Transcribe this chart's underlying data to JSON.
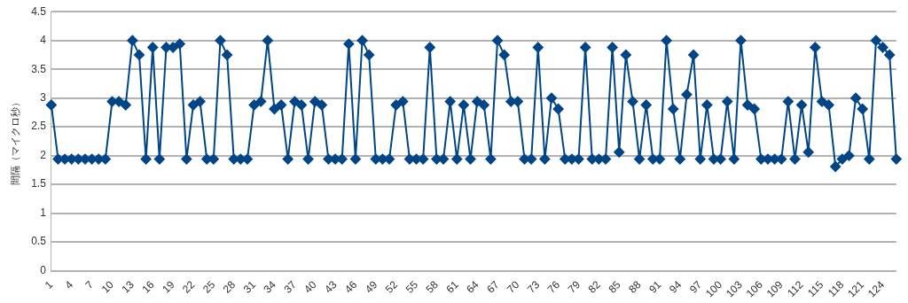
{
  "chart_data": {
    "type": "line",
    "ylabel": "間隔（マイクロ秒）",
    "categories": [
      "1",
      null,
      null,
      "4",
      null,
      null,
      "7",
      null,
      null,
      "10",
      null,
      null,
      "13",
      null,
      null,
      "16",
      null,
      null,
      "19",
      null,
      null,
      "22",
      null,
      null,
      "25",
      null,
      null,
      "28",
      null,
      null,
      "31",
      null,
      null,
      "34",
      null,
      null,
      "37",
      null,
      null,
      "40",
      null,
      null,
      "43",
      null,
      null,
      "46",
      null,
      null,
      "49",
      null,
      null,
      "52",
      null,
      null,
      "55",
      null,
      null,
      "58",
      null,
      null,
      "61",
      null,
      null,
      "64",
      null,
      null,
      "67",
      null,
      null,
      "70",
      null,
      null,
      "73",
      null,
      null,
      "76",
      null,
      null,
      "79",
      null,
      null,
      "82",
      null,
      null,
      "85",
      null,
      null,
      "88",
      null,
      null,
      "91",
      null,
      null,
      "94",
      null,
      null,
      "97",
      null,
      null,
      "100",
      null,
      null,
      "103",
      null,
      null,
      "106",
      null,
      null,
      "109",
      null,
      null,
      "112",
      null,
      null,
      "115",
      null,
      null,
      "118",
      null,
      null,
      "121",
      null,
      null,
      "124",
      null,
      null
    ],
    "series": [
      {
        "color": "#004586",
        "values": [
          2.88,
          1.94,
          1.94,
          1.94,
          1.94,
          1.94,
          1.94,
          1.94,
          1.94,
          2.94,
          2.94,
          2.88,
          4.0,
          3.75,
          1.94,
          3.88,
          1.94,
          3.88,
          3.88,
          3.94,
          1.94,
          2.88,
          2.94,
          1.94,
          1.94,
          4.0,
          3.75,
          1.94,
          1.94,
          1.94,
          2.88,
          2.94,
          4.0,
          2.81,
          2.88,
          1.94,
          2.94,
          2.88,
          1.94,
          2.94,
          2.88,
          1.94,
          1.94,
          1.94,
          3.94,
          1.94,
          4.0,
          3.75,
          1.94,
          1.94,
          1.94,
          2.88,
          2.94,
          1.94,
          1.94,
          1.94,
          3.88,
          1.94,
          1.94,
          2.94,
          1.94,
          2.88,
          1.94,
          2.94,
          2.88,
          1.94,
          4.0,
          3.75,
          2.94,
          2.94,
          1.94,
          1.94,
          3.88,
          1.94,
          3.0,
          2.81,
          1.94,
          1.94,
          1.94,
          3.88,
          1.94,
          1.94,
          1.94,
          3.88,
          2.06,
          3.75,
          2.94,
          1.94,
          2.88,
          1.94,
          1.94,
          4.0,
          2.81,
          1.94,
          3.06,
          3.75,
          1.94,
          2.88,
          1.94,
          1.94,
          2.94,
          1.94,
          4.0,
          2.88,
          2.81,
          1.94,
          1.94,
          1.94,
          1.94,
          2.94,
          1.94,
          2.88,
          2.06,
          3.88,
          2.94,
          2.88,
          1.81,
          1.94,
          2.0,
          3.0,
          2.81,
          1.94,
          4.0,
          3.88,
          3.75,
          1.94
        ]
      }
    ],
    "ylim": [
      0,
      4.5
    ],
    "yticks": [
      0,
      0.5,
      1,
      1.5,
      2,
      2.5,
      3,
      3.5,
      4,
      4.5
    ],
    "grid": "y",
    "legend": false,
    "marker": "diamond",
    "line_style": "solid"
  }
}
